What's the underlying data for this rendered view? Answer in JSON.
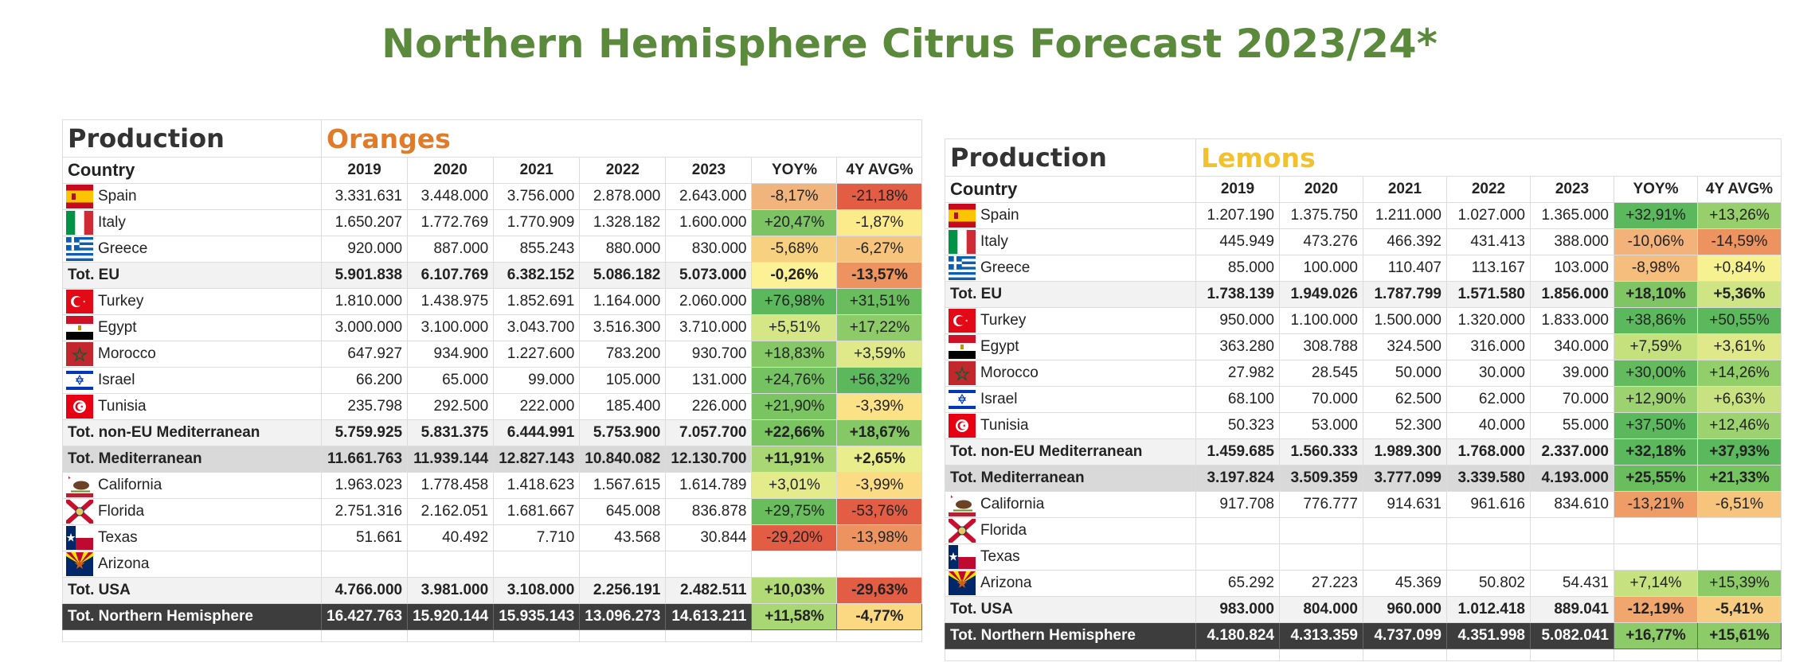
{
  "title": "Northern Hemisphere Citrus Forecast 2023/24*",
  "tables": [
    {
      "production_label": "Production",
      "fruit": "Oranges",
      "fruit_color": "#e07b2a",
      "country_label": "Country",
      "columns": [
        "2019",
        "2020",
        "2021",
        "2022",
        "2023",
        "YOY%",
        "4Y AVG%"
      ],
      "rows": [
        {
          "type": "country",
          "flag": "spain-flag-icon",
          "name": "Spain",
          "values": [
            "3.331.631",
            "3.448.000",
            "3.756.000",
            "2.878.000",
            "2.643.000"
          ],
          "yoy": "-8,17%",
          "avg": "-21,18%",
          "yoy_color": "#f0b47c",
          "avg_color": "#e35c44"
        },
        {
          "type": "country",
          "flag": "italy-flag-icon",
          "name": "Italy",
          "values": [
            "1.650.207",
            "1.772.769",
            "1.770.909",
            "1.328.182",
            "1.600.000"
          ],
          "yoy": "+20,47%",
          "avg": "-1,87%",
          "yoy_color": "#7cc463",
          "avg_color": "#fbeb8a"
        },
        {
          "type": "country",
          "flag": "greece-flag-icon",
          "name": "Greece",
          "values": [
            "920.000",
            "887.000",
            "855.243",
            "880.000",
            "830.000"
          ],
          "yoy": "-5,68%",
          "avg": "-6,27%",
          "yoy_color": "#f7d080",
          "avg_color": "#f6c47c"
        },
        {
          "type": "tot",
          "name": "Tot. EU",
          "values": [
            "5.901.838",
            "6.107.769",
            "6.382.152",
            "5.086.182",
            "5.073.000"
          ],
          "yoy": "-0,26%",
          "avg": "-13,57%",
          "yoy_color": "#fdf196",
          "avg_color": "#ec935f"
        },
        {
          "type": "country",
          "flag": "turkey-flag-icon",
          "name": "Turkey",
          "values": [
            "1.810.000",
            "1.438.975",
            "1.852.691",
            "1.164.000",
            "2.060.000"
          ],
          "yoy": "+76,98%",
          "avg": "+31,51%",
          "yoy_color": "#5cb85c",
          "avg_color": "#6abd5d"
        },
        {
          "type": "country",
          "flag": "egypt-flag-icon",
          "name": "Egypt",
          "values": [
            "3.000.000",
            "3.100.000",
            "3.043.700",
            "3.516.300",
            "3.710.000"
          ],
          "yoy": "+5,51%",
          "avg": "+17,22%",
          "yoy_color": "#d5e686",
          "avg_color": "#8ccb68"
        },
        {
          "type": "country",
          "flag": "morocco-flag-icon",
          "name": "Morocco",
          "values": [
            "647.927",
            "934.900",
            "1.227.600",
            "783.200",
            "930.700"
          ],
          "yoy": "+18,83%",
          "avg": "+3,59%",
          "yoy_color": "#86c866",
          "avg_color": "#dfe98a"
        },
        {
          "type": "country",
          "flag": "israel-flag-icon",
          "name": "Israel",
          "values": [
            "66.200",
            "65.000",
            "99.000",
            "105.000",
            "131.000"
          ],
          "yoy": "+24,76%",
          "avg": "+56,32%",
          "yoy_color": "#74c261",
          "avg_color": "#5cb85c"
        },
        {
          "type": "country",
          "flag": "tunisia-flag-icon",
          "name": "Tunisia",
          "values": [
            "235.798",
            "292.500",
            "222.000",
            "185.400",
            "226.000"
          ],
          "yoy": "+21,90%",
          "avg": "-3,39%",
          "yoy_color": "#7ac462",
          "avg_color": "#fbe286"
        },
        {
          "type": "tot",
          "name": "Tot. non-EU Mediterranean",
          "values": [
            "5.759.925",
            "5.831.375",
            "6.444.991",
            "5.753.900",
            "7.057.700"
          ],
          "yoy": "+22,66%",
          "avg": "+18,67%",
          "yoy_color": "#7ac462",
          "avg_color": "#86c866"
        },
        {
          "type": "med",
          "name": "Tot. Mediterranean",
          "values": [
            "11.661.763",
            "11.939.144",
            "12.827.143",
            "10.840.082",
            "12.130.700"
          ],
          "yoy": "+11,91%",
          "avg": "+2,65%",
          "yoy_color": "#a9d774",
          "avg_color": "#eaed8c"
        },
        {
          "type": "country",
          "flag": "california-flag-icon",
          "name": "California",
          "values": [
            "1.963.023",
            "1.778.458",
            "1.418.623",
            "1.567.615",
            "1.614.789"
          ],
          "yoy": "+3,01%",
          "avg": "-3,99%",
          "yoy_color": "#e3eb8b",
          "avg_color": "#fbdc84"
        },
        {
          "type": "country",
          "flag": "florida-flag-icon",
          "name": "Florida",
          "values": [
            "2.751.316",
            "2.162.051",
            "1.681.667",
            "645.008",
            "836.878"
          ],
          "yoy": "+29,75%",
          "avg": "-53,76%",
          "yoy_color": "#6abd5d",
          "avg_color": "#e35c44"
        },
        {
          "type": "country",
          "flag": "texas-flag-icon",
          "name": "Texas",
          "values": [
            "51.661",
            "40.492",
            "7.710",
            "43.568",
            "30.844"
          ],
          "yoy": "-29,20%",
          "avg": "-13,98%",
          "yoy_color": "#e35c44",
          "avg_color": "#ec935f"
        },
        {
          "type": "country",
          "flag": "arizona-flag-icon",
          "name": "Arizona",
          "values": [
            "",
            "",
            "",
            "",
            ""
          ],
          "yoy": "",
          "avg": "",
          "yoy_color": "",
          "avg_color": ""
        },
        {
          "type": "tot",
          "name": "Tot. USA",
          "values": [
            "4.766.000",
            "3.981.000",
            "3.108.000",
            "2.256.191",
            "2.482.511"
          ],
          "yoy": "+10,03%",
          "avg": "-29,63%",
          "yoy_color": "#b2da76",
          "avg_color": "#e35c44"
        },
        {
          "type": "nh",
          "name": "Tot. Northern Hemisphere",
          "values": [
            "16.427.763",
            "15.920.144",
            "15.935.143",
            "13.096.273",
            "14.613.211"
          ],
          "yoy": "+11,58%",
          "avg": "-4,77%",
          "yoy_color": "#a9d774",
          "avg_color": "#fbd983"
        }
      ]
    },
    {
      "production_label": "Production",
      "fruit": "Lemons",
      "fruit_color": "#f2c22e",
      "country_label": "Country",
      "columns": [
        "2019",
        "2020",
        "2021",
        "2022",
        "2023",
        "YOY%",
        "4Y AVG%"
      ],
      "rows": [
        {
          "type": "country",
          "flag": "spain-flag-icon",
          "name": "Spain",
          "values": [
            "1.207.190",
            "1.375.750",
            "1.211.000",
            "1.027.000",
            "1.365.000"
          ],
          "yoy": "+32,91%",
          "avg": "+13,26%",
          "yoy_color": "#5cb85c",
          "avg_color": "#96cf6b"
        },
        {
          "type": "country",
          "flag": "italy-flag-icon",
          "name": "Italy",
          "values": [
            "445.949",
            "473.276",
            "466.392",
            "431.413",
            "388.000"
          ],
          "yoy": "-10,06%",
          "avg": "-14,59%",
          "yoy_color": "#f3b27a",
          "avg_color": "#ec935f"
        },
        {
          "type": "country",
          "flag": "greece-flag-icon",
          "name": "Greece",
          "values": [
            "85.000",
            "100.000",
            "110.407",
            "113.167",
            "103.000"
          ],
          "yoy": "-8,98%",
          "avg": "+0,84%",
          "yoy_color": "#f6be7c",
          "avg_color": "#f6f291"
        },
        {
          "type": "tot",
          "name": "Tot. EU",
          "values": [
            "1.738.139",
            "1.949.026",
            "1.787.799",
            "1.571.580",
            "1.856.000"
          ],
          "yoy": "+18,10%",
          "avg": "+5,36%",
          "yoy_color": "#80c564",
          "avg_color": "#cfe485"
        },
        {
          "type": "country",
          "flag": "turkey-flag-icon",
          "name": "Turkey",
          "values": [
            "950.000",
            "1.100.000",
            "1.500.000",
            "1.320.000",
            "1.833.000"
          ],
          "yoy": "+38,86%",
          "avg": "+50,55%",
          "yoy_color": "#5cb85c",
          "avg_color": "#5cb85c"
        },
        {
          "type": "country",
          "flag": "egypt-flag-icon",
          "name": "Egypt",
          "values": [
            "363.280",
            "308.788",
            "324.500",
            "316.000",
            "340.000"
          ],
          "yoy": "+7,59%",
          "avg": "+3,61%",
          "yoy_color": "#c4e17e",
          "avg_color": "#dfe98a"
        },
        {
          "type": "country",
          "flag": "morocco-flag-icon",
          "name": "Morocco",
          "values": [
            "27.982",
            "28.545",
            "50.000",
            "30.000",
            "39.000"
          ],
          "yoy": "+30,00%",
          "avg": "+14,26%",
          "yoy_color": "#64bb5e",
          "avg_color": "#92ce6a"
        },
        {
          "type": "country",
          "flag": "israel-flag-icon",
          "name": "Israel",
          "values": [
            "68.100",
            "70.000",
            "62.500",
            "62.000",
            "70.000"
          ],
          "yoy": "+12,90%",
          "avg": "+6,63%",
          "yoy_color": "#9cd370",
          "avg_color": "#c8e281"
        },
        {
          "type": "country",
          "flag": "tunisia-flag-icon",
          "name": "Tunisia",
          "values": [
            "50.323",
            "53.000",
            "52.300",
            "40.000",
            "55.000"
          ],
          "yoy": "+37,50%",
          "avg": "+12,46%",
          "yoy_color": "#5cb85c",
          "avg_color": "#9cd370"
        },
        {
          "type": "tot",
          "name": "Tot. non-EU Mediterranean",
          "values": [
            "1.459.685",
            "1.560.333",
            "1.989.300",
            "1.768.000",
            "2.337.000"
          ],
          "yoy": "+32,18%",
          "avg": "+37,93%",
          "yoy_color": "#5cb85c",
          "avg_color": "#5cb85c"
        },
        {
          "type": "med",
          "name": "Tot. Mediterranean",
          "values": [
            "3.197.824",
            "3.509.359",
            "3.777.099",
            "3.339.580",
            "4.193.000"
          ],
          "yoy": "+25,55%",
          "avg": "+21,33%",
          "yoy_color": "#6abd5d",
          "avg_color": "#76c362"
        },
        {
          "type": "country",
          "flag": "california-flag-icon",
          "name": "California",
          "values": [
            "917.708",
            "776.777",
            "914.631",
            "961.616",
            "834.610"
          ],
          "yoy": "-13,21%",
          "avg": "-6,51%",
          "yoy_color": "#ee9d66",
          "avg_color": "#f6c47c"
        },
        {
          "type": "country",
          "flag": "florida-flag-icon",
          "name": "Florida",
          "values": [
            "",
            "",
            "",
            "",
            ""
          ],
          "yoy": "",
          "avg": "",
          "yoy_color": "",
          "avg_color": ""
        },
        {
          "type": "country",
          "flag": "texas-flag-icon",
          "name": "Texas",
          "values": [
            "",
            "",
            "",
            "",
            ""
          ],
          "yoy": "",
          "avg": "",
          "yoy_color": "",
          "avg_color": ""
        },
        {
          "type": "country",
          "flag": "arizona-flag-icon",
          "name": "Arizona",
          "values": [
            "65.292",
            "27.223",
            "45.369",
            "50.802",
            "54.431"
          ],
          "yoy": "+7,14%",
          "avg": "+15,39%",
          "yoy_color": "#c6e17f",
          "avg_color": "#8ccb68"
        },
        {
          "type": "tot",
          "name": "Tot. USA",
          "values": [
            "983.000",
            "804.000",
            "960.000",
            "1.012.418",
            "889.041"
          ],
          "yoy": "-12,19%",
          "avg": "-5,41%",
          "yoy_color": "#f0a66c",
          "avg_color": "#f8cc80"
        },
        {
          "type": "nh",
          "name": "Tot. Northern Hemisphere",
          "values": [
            "4.180.824",
            "4.313.359",
            "4.737.099",
            "4.351.998",
            "5.082.041"
          ],
          "yoy": "+16,77%",
          "avg": "+15,61%",
          "yoy_color": "#8ccb68",
          "avg_color": "#8ccb68"
        }
      ]
    }
  ]
}
